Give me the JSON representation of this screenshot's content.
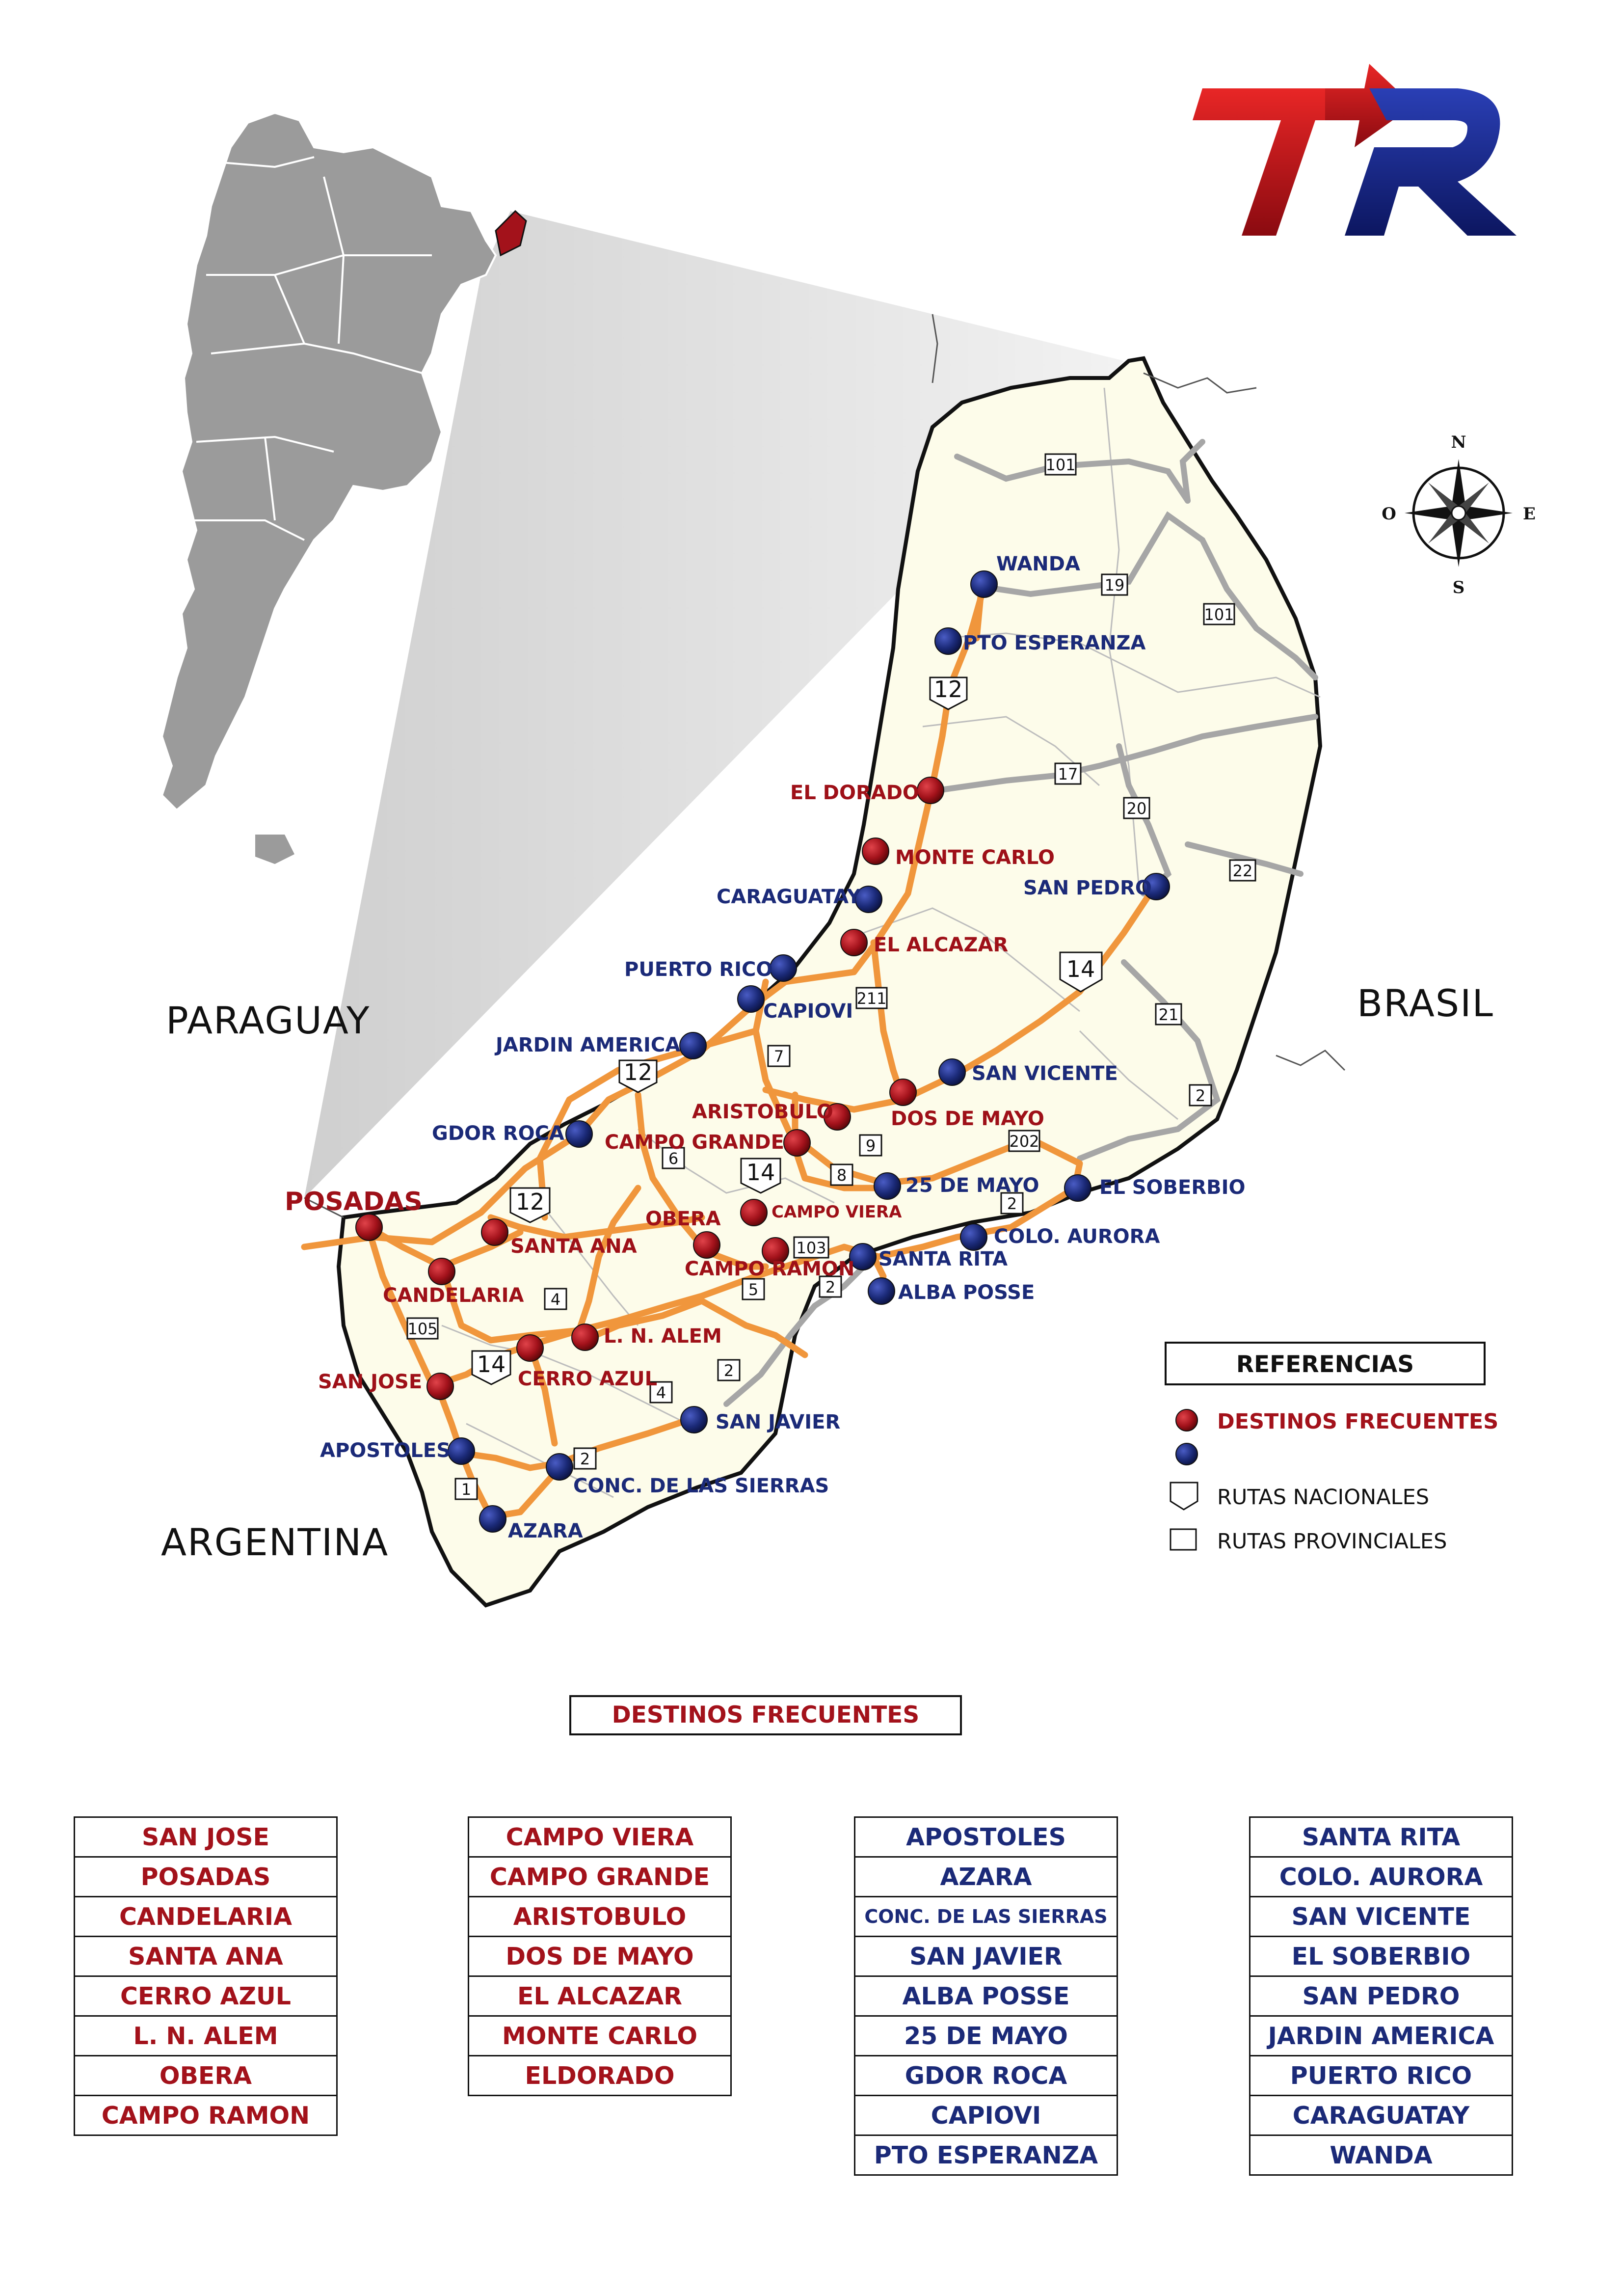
{
  "countries": {
    "paraguay": "PARAGUAY",
    "brasil": "BRASIL",
    "argentina": "ARGENTINA"
  },
  "compass": {
    "n": "N",
    "s": "S",
    "e": "E",
    "o": "O"
  },
  "references": {
    "title": "REFERENCIAS",
    "frequent": "DESTINOS FRECUENTES",
    "other": "",
    "national": "RUTAS NACIONALES",
    "provincial": "RUTAS PROVINCIALES"
  },
  "colors": {
    "frequent": "#9e1018",
    "other": "#1b2a78",
    "road": "#f0963c",
    "secondary_road": "#a6a6a6",
    "province_fill": "#fdfcea"
  },
  "cities": {
    "wanda": "WANDA",
    "pto_esperanza": "PTO ESPERANZA",
    "el_dorado": "EL DORADO",
    "monte_carlo": "MONTE CARLO",
    "caraguatay": "CARAGUATAY",
    "san_pedro": "SAN PEDRO",
    "el_alcazar": "EL ALCAZAR",
    "puerto_rico": "PUERTO RICO",
    "capiovi": "CAPIOVI",
    "jardin_america": "JARDIN AMERICA",
    "san_vicente": "SAN VICENTE",
    "aristobulo": "ARISTOBULO",
    "dos_de_mayo": "DOS DE MAYO",
    "gdor_roca": "GDOR ROCA",
    "campo_grande": "CAMPO GRANDE",
    "veinticinco_de_mayo": "25 DE MAYO",
    "el_soberbio": "EL SOBERBIO",
    "posadas": "POSADAS",
    "obera": "OBERA",
    "campo_viera": "CAMPO VIERA",
    "colo_aurora": "COLO. AURORA",
    "santa_ana": "SANTA ANA",
    "campo_ramon": "CAMPO RAMON",
    "santa_rita": "SANTA RITA",
    "alba_posse": "ALBA POSSE",
    "candelaria": "CANDELARIA",
    "l_n_alem": "L. N. ALEM",
    "san_jose": "SAN JOSE",
    "cerro_azul": "CERRO AZUL",
    "san_javier": "SAN JAVIER",
    "apostoles": "APOSTOLES",
    "conc_sierras": "CONC. DE LAS SIERRAS",
    "azara": "AZARA"
  },
  "routes": {
    "r101a": "101",
    "r101b": "101",
    "r19": "19",
    "r12a": "12",
    "r17": "17",
    "r20": "20",
    "r22": "22",
    "r14a": "14",
    "r211": "211",
    "r21": "21",
    "r12b": "12",
    "r7": "7",
    "r2a": "2",
    "r202": "202",
    "r9": "9",
    "r6": "6",
    "r14b": "14",
    "r8": "8",
    "r12c": "12",
    "r2b": "2",
    "r103": "103",
    "r2c": "2",
    "r4a": "4",
    "r5": "5",
    "r105": "105",
    "r14c": "14",
    "r4b": "4",
    "r2d": "2",
    "r2e": "2",
    "r1": "1"
  },
  "destinations_title": "DESTINOS FRECUENTES",
  "tables": {
    "col1": [
      "SAN JOSE",
      "POSADAS",
      "CANDELARIA",
      "SANTA ANA",
      "CERRO AZUL",
      "L. N. ALEM",
      "OBERA",
      "CAMPO RAMON"
    ],
    "col2": [
      "CAMPO VIERA",
      "CAMPO GRANDE",
      "ARISTOBULO",
      "DOS DE MAYO",
      "EL ALCAZAR",
      "MONTE CARLO",
      "ELDORADO"
    ],
    "col3": [
      "APOSTOLES",
      "AZARA",
      "CONC. DE LAS SIERRAS",
      "SAN JAVIER",
      "ALBA POSSE",
      "25 DE MAYO",
      "GDOR ROCA",
      "CAPIOVI",
      "PTO ESPERANZA"
    ],
    "col4": [
      "SANTA RITA",
      "COLO. AURORA",
      "SAN VICENTE",
      "EL SOBERBIO",
      "SAN PEDRO",
      "JARDIN AMERICA",
      "PUERTO RICO",
      "CARAGUATAY",
      "WANDA"
    ]
  }
}
